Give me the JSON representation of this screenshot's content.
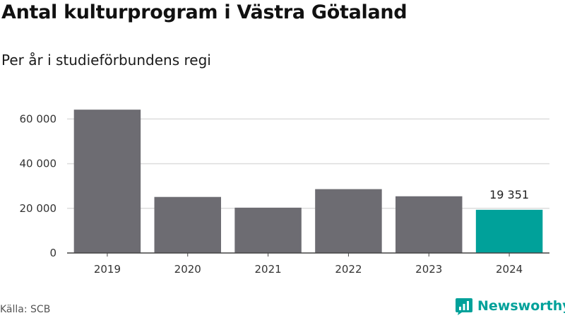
{
  "title": "Antal kulturprogram i Västra Götaland",
  "subtitle": "Per år i studieförbundens regi",
  "source": "Källa: SCB",
  "brand": "Newsworthy",
  "colors": {
    "bar": "#6d6c72",
    "highlight": "#00a19a",
    "grid": "#dddddd",
    "axis": "#444444"
  },
  "chart_data": {
    "type": "bar",
    "title": "Antal kulturprogram i Västra Götaland",
    "subtitle": "Per år i studieförbundens regi",
    "xlabel": "",
    "ylabel": "",
    "categories": [
      "2019",
      "2020",
      "2021",
      "2022",
      "2023",
      "2024"
    ],
    "values": [
      64200,
      25100,
      20300,
      28600,
      25400,
      19351
    ],
    "highlight_index": 5,
    "data_labels": [
      {
        "index": 5,
        "text": "19 351"
      }
    ],
    "ylim": [
      0,
      69000
    ],
    "yticks": [
      0,
      20000,
      40000,
      60000
    ],
    "ytick_labels": [
      "0",
      "20 000",
      "40 000",
      "60 000"
    ],
    "grid": true,
    "legend": "none"
  }
}
